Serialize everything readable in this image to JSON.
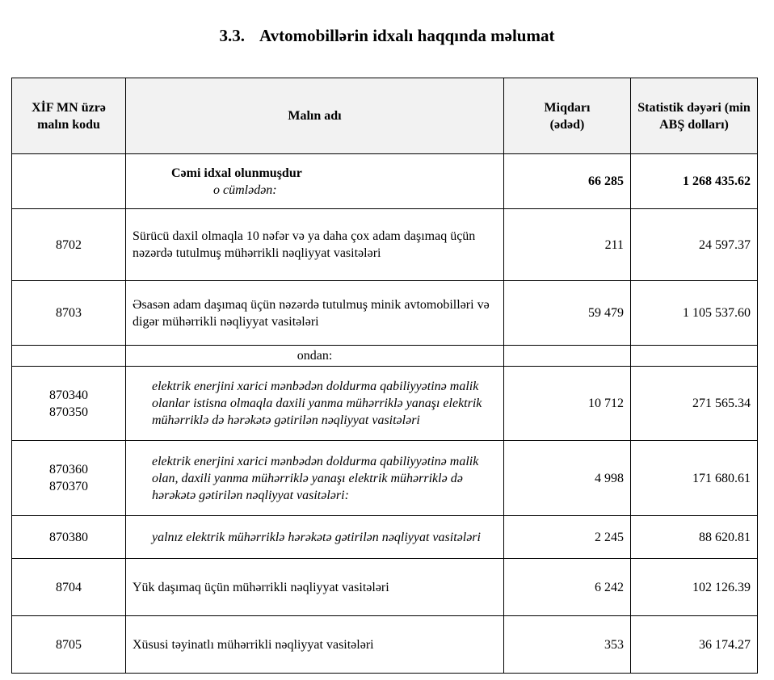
{
  "title": {
    "number": "3.3.",
    "text": "Avtomobillərin idxalı haqqında məlumat"
  },
  "headers": [
    "XİF MN üzrə malın kodu",
    "Malın adı",
    "Miqdarı (ədəd)",
    "Statistik dəyəri (min ABŞ dolları)"
  ],
  "total": {
    "label": "Cəmi  idxal  olunmuşdur",
    "sublabel": "o cümlədən:",
    "quantity": "66 285",
    "value": "1 268 435.62"
  },
  "ondan_label": "ondan:",
  "rows": [
    {
      "codes": [
        "8702"
      ],
      "name": "Sürücü daxil olmaqla 10 nəfər və ya daha çox adam daşımaq üçün nəzərdə tutulmuş mühərrikli nəqliyyat vasitələri",
      "quantity": "211",
      "value": "24 597.37",
      "italic": false
    },
    {
      "codes": [
        "8703"
      ],
      "name": "Əsasən adam daşımaq üçün nəzərdə tutulmuş minik avtomobilləri və digər mühərrikli nəqliyyat vasitələri",
      "quantity": "59 479",
      "value": "1 105 537.60",
      "italic": false
    },
    {
      "ondan": true
    },
    {
      "codes": [
        "870340",
        "870350"
      ],
      "name": "elektrik enerjini xarici mənbədən doldurma qabiliyyətinə malik olanlar istisna olmaqla daxili yanma mühərriklə yanaşı elektrik mühərriklə də hərəkətə gətirilən nəqliyyat vasitələri",
      "quantity": "10 712",
      "value": "271 565.34",
      "italic": true
    },
    {
      "codes": [
        "870360",
        "870370"
      ],
      "name": "elektrik enerjini xarici mənbədən doldurma qabiliyyətinə malik olan, daxili yanma mühərriklə yanaşı elektrik mühərriklə də hərəkətə gətirilən nəqliyyat vasitələri:",
      "quantity": "4 998",
      "value": "171 680.61",
      "italic": true
    },
    {
      "codes": [
        "870380"
      ],
      "name": "yalnız elektrik mühərriklə hərəkətə gətirilən nəqliyyat vasitələri",
      "quantity": "2 245",
      "value": "88 620.81",
      "italic": true
    },
    {
      "codes": [
        "8704"
      ],
      "name": "Yük daşımaq üçün mühərrikli nəqliyyat vasitələri",
      "quantity": "6 242",
      "value": "102 126.39",
      "italic": false
    },
    {
      "codes": [
        "8705"
      ],
      "name": "Xüsusi təyinatlı mühərrikli nəqliyyat vasitələri",
      "quantity": "353",
      "value": "36 174.27",
      "italic": false
    }
  ]
}
